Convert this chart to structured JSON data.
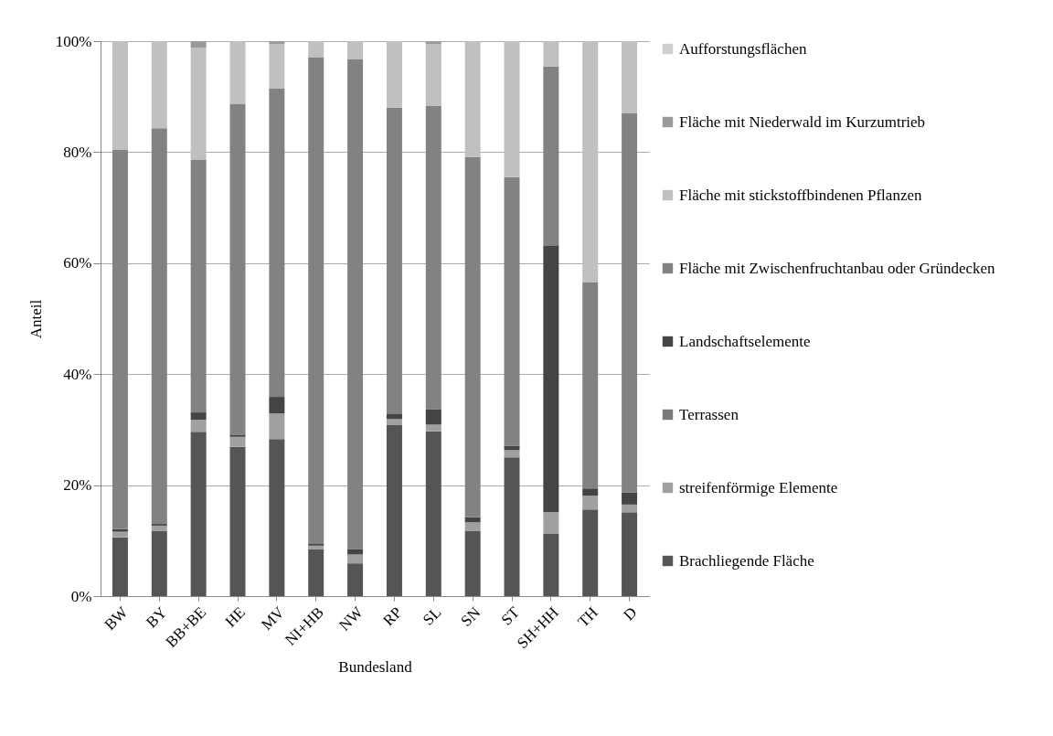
{
  "chart_data": {
    "type": "bar",
    "stacked": true,
    "xlabel": "Bundesland",
    "ylabel": "Anteil",
    "categories": [
      "BW",
      "BY",
      "BB+BE",
      "HE",
      "MV",
      "NI+HB",
      "NW",
      "RP",
      "SL",
      "SN",
      "ST",
      "SH+HH",
      "TH",
      "D"
    ],
    "series": [
      {
        "name": "Brachliegende Fläche",
        "color": "#555555",
        "values": [
          10.6,
          11.7,
          29.6,
          26.9,
          28.3,
          8.5,
          5.9,
          30.9,
          29.7,
          11.7,
          25.0,
          11.2,
          15.6,
          15.1
        ]
      },
      {
        "name": "streifenförmige Elemente",
        "color": "#a0a0a0",
        "values": [
          1.0,
          1.0,
          2.2,
          1.8,
          4.6,
          0.6,
          1.6,
          1.0,
          1.2,
          1.6,
          1.3,
          3.9,
          2.5,
          1.4
        ]
      },
      {
        "name": "Terrassen",
        "color": "#7a7a7a",
        "values": [
          0,
          0,
          0,
          0,
          0,
          0,
          0,
          0,
          0,
          0,
          0,
          0,
          0,
          0
        ]
      },
      {
        "name": "Landschaftselemente",
        "color": "#444444",
        "values": [
          0.5,
          0.3,
          1.3,
          0.4,
          3.0,
          0.4,
          1.0,
          1.0,
          2.8,
          0.9,
          0.8,
          48.0,
          1.3,
          2.2
        ]
      },
      {
        "name": "Fläche mit Zwischenfruchtanbau oder Gründecken",
        "color": "#828282",
        "values": [
          68.3,
          71.3,
          45.5,
          59.6,
          55.6,
          87.6,
          88.2,
          55.1,
          54.6,
          64.9,
          48.4,
          32.3,
          37.1,
          68.3
        ]
      },
      {
        "name": "Fläche mit stickstoffbindenen Pflanzen",
        "color": "#c0c0c0",
        "values": [
          19.6,
          15.7,
          20.2,
          11.3,
          8.0,
          2.9,
          3.3,
          12.0,
          11.2,
          20.9,
          24.5,
          4.6,
          43.5,
          13.0
        ]
      },
      {
        "name": "Fläche mit Niederwald im Kurzumtrieb",
        "color": "#9a9a9a",
        "values": [
          0,
          0,
          1.2,
          0,
          0.5,
          0,
          0,
          0,
          0.5,
          0,
          0,
          0,
          0,
          0
        ]
      },
      {
        "name": "Aufforstungsflächen",
        "color": "#cfcfcf",
        "values": [
          0,
          0,
          0,
          0,
          0,
          0,
          0,
          0,
          0,
          0,
          0,
          0,
          0,
          0
        ]
      }
    ],
    "ylim": [
      0,
      100
    ],
    "yticks": [
      {
        "value": 0,
        "label": "0%"
      },
      {
        "value": 20,
        "label": "20%"
      },
      {
        "value": 40,
        "label": "40%"
      },
      {
        "value": 60,
        "label": "60%"
      },
      {
        "value": 80,
        "label": "80%"
      },
      {
        "value": 100,
        "label": "100%"
      }
    ],
    "grid": "y",
    "legend": "right"
  }
}
